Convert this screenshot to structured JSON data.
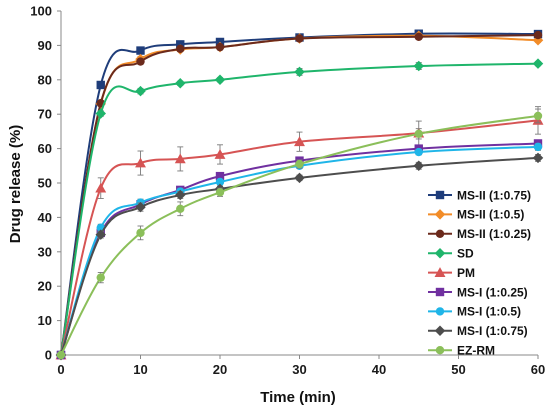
{
  "chart_data": {
    "type": "line",
    "xlabel": "Time (min)",
    "ylabel": "Drug release (%)",
    "xlim": [
      0,
      60
    ],
    "ylim": [
      0,
      100
    ],
    "xticks": [
      0,
      10,
      20,
      30,
      40,
      50,
      60
    ],
    "yticks": [
      0,
      10,
      20,
      30,
      40,
      50,
      60,
      70,
      80,
      90,
      100
    ],
    "legend_position": "right",
    "x": [
      0,
      5,
      10,
      15,
      20,
      30,
      45,
      60
    ],
    "series": [
      {
        "name": "MS-II (1:0.75)",
        "color": "#1f3d7a",
        "marker": "square",
        "values": [
          0,
          78.5,
          88.5,
          90.3,
          91.0,
          92.3,
          93.4,
          93.3
        ],
        "errors": [
          0,
          0.8,
          0.8,
          0.5,
          0.5,
          0.5,
          0.5,
          0.5
        ]
      },
      {
        "name": "MS-II (1:0.5)",
        "color": "#f28c28",
        "marker": "diamond",
        "values": [
          0,
          73.0,
          86.0,
          88.8,
          89.5,
          92.0,
          92.8,
          91.5
        ],
        "errors": [
          0,
          0.8,
          0.8,
          0.6,
          0.6,
          0.5,
          0.6,
          0.6
        ]
      },
      {
        "name": "MS-II (1:0.25)",
        "color": "#6b2a1c",
        "marker": "circle",
        "values": [
          0,
          73.2,
          85.3,
          89.0,
          89.5,
          92.0,
          92.5,
          93.0
        ],
        "errors": [
          0,
          0.8,
          0.8,
          0.6,
          0.6,
          0.5,
          0.5,
          0.5
        ]
      },
      {
        "name": "SD",
        "color": "#1fb56b",
        "marker": "diamond",
        "values": [
          0,
          70.2,
          76.7,
          79.0,
          80.0,
          82.3,
          84.0,
          84.7
        ],
        "errors": [
          0,
          0.8,
          0.8,
          0.6,
          0.6,
          1.0,
          1.0,
          0.6
        ]
      },
      {
        "name": "PM",
        "color": "#d65454",
        "marker": "triangle",
        "values": [
          0,
          48.5,
          55.8,
          57.0,
          58.3,
          62.0,
          64.5,
          68.2
        ],
        "errors": [
          0,
          3.0,
          3.5,
          3.5,
          2.8,
          2.8,
          3.5,
          4.0
        ]
      },
      {
        "name": "MS-I (1:0.25)",
        "color": "#7030a0",
        "marker": "square",
        "values": [
          0,
          35.5,
          43.8,
          48.0,
          52.0,
          56.5,
          60.0,
          61.5
        ],
        "errors": [
          0,
          1.0,
          1.2,
          1.0,
          0.8,
          0.8,
          0.8,
          1.0
        ]
      },
      {
        "name": "MS-I (1:0.5)",
        "color": "#1fb5e8",
        "marker": "circle",
        "values": [
          0,
          37.0,
          44.3,
          47.5,
          50.3,
          55.0,
          59.0,
          60.5
        ],
        "errors": [
          0,
          1.0,
          1.0,
          1.0,
          0.8,
          0.8,
          0.8,
          1.0
        ]
      },
      {
        "name": "MS-I (1:0.75)",
        "color": "#4d4d4d",
        "marker": "diamond",
        "values": [
          0,
          35.0,
          43.0,
          46.5,
          48.3,
          51.5,
          55.0,
          57.3
        ],
        "errors": [
          0,
          1.0,
          1.2,
          1.0,
          0.8,
          0.8,
          1.0,
          1.0
        ]
      },
      {
        "name": "EZ-RM",
        "color": "#8bbf5a",
        "marker": "circle",
        "values": [
          0,
          22.5,
          35.5,
          42.5,
          47.3,
          55.5,
          64.3,
          69.5
        ],
        "errors": [
          0,
          1.5,
          2.0,
          2.0,
          1.2,
          1.2,
          1.5,
          2.0
        ]
      }
    ]
  }
}
